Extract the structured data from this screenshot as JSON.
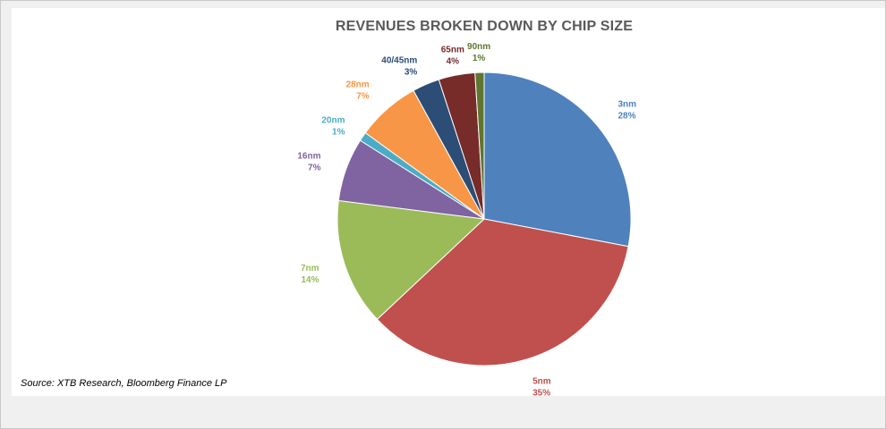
{
  "chart_data": {
    "type": "pie",
    "title": "REVENUES BROKEN DOWN BY CHIP SIZE",
    "slices": [
      {
        "label": "3nm",
        "value": 28,
        "value_label": "28%",
        "color": "#4f81bd"
      },
      {
        "label": "5nm",
        "value": 35,
        "value_label": "35%",
        "color": "#c0504d"
      },
      {
        "label": "7nm",
        "value": 14,
        "value_label": "14%",
        "color": "#9bbb59"
      },
      {
        "label": "16nm",
        "value": 7,
        "value_label": "7%",
        "color": "#8064a2"
      },
      {
        "label": "20nm",
        "value": 1,
        "value_label": "1%",
        "color": "#4bacc6"
      },
      {
        "label": "28nm",
        "value": 7,
        "value_label": "7%",
        "color": "#f79646"
      },
      {
        "label": "40/45nm",
        "value": 3,
        "value_label": "3%",
        "color": "#2c4d75"
      },
      {
        "label": "65nm",
        "value": 4,
        "value_label": "4%",
        "color": "#772c2a"
      },
      {
        "label": "90nm",
        "value": 1,
        "value_label": "1%",
        "color": "#5f7530"
      }
    ],
    "legend": "none"
  },
  "source": "Source: XTB Research, Bloomberg Finance LP"
}
